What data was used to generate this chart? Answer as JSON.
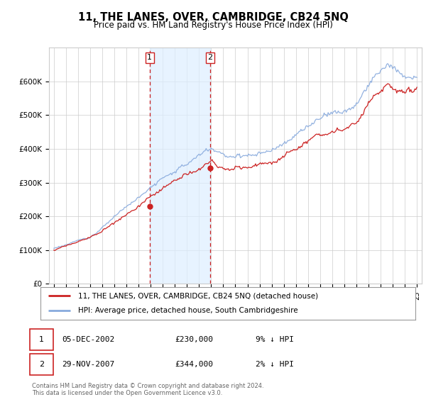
{
  "title": "11, THE LANES, OVER, CAMBRIDGE, CB24 5NQ",
  "subtitle": "Price paid vs. HM Land Registry's House Price Index (HPI)",
  "hpi_color": "#88aadd",
  "price_color": "#cc2222",
  "sale1_x": 2002.92,
  "sale1_y": 230000,
  "sale2_x": 2007.91,
  "sale2_y": 344000,
  "legend_line1": "11, THE LANES, OVER, CAMBRIDGE, CB24 5NQ (detached house)",
  "legend_line2": "HPI: Average price, detached house, South Cambridgeshire",
  "footnote": "Contains HM Land Registry data © Crown copyright and database right 2024.\nThis data is licensed under the Open Government Licence v3.0.",
  "ylim": [
    0,
    700000
  ],
  "xlim_start": 1994.6,
  "xlim_end": 2025.4,
  "background_color": "#ffffff",
  "grid_color": "#cccccc",
  "shade_color": "#ddeeff"
}
